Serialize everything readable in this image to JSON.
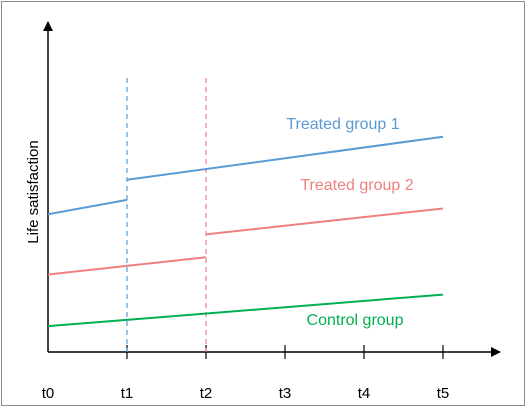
{
  "chart_data": {
    "type": "line",
    "title": "",
    "xlabel": "",
    "ylabel": "Life satisfaction",
    "categories": [
      "t0",
      "t1",
      "t2",
      "t3",
      "t4",
      "t5"
    ],
    "x_values": [
      0,
      1,
      2,
      3,
      4,
      5
    ],
    "ylim": [
      0,
      10
    ],
    "grid": false,
    "legend": "inline labels",
    "treatment_markers": [
      {
        "x": 1,
        "color": "#5b9bd5"
      },
      {
        "x": 2,
        "color": "#f08080"
      }
    ],
    "series": [
      {
        "name": "Treated group 1",
        "color": "#5b9bd5",
        "segments": [
          [
            [
              0,
              4.8
            ],
            [
              1,
              5.3
            ]
          ],
          [
            [
              1,
              6.0
            ],
            [
              5,
              7.5
            ]
          ]
        ]
      },
      {
        "name": "Treated group 2",
        "color": "#f08080",
        "segments": [
          [
            [
              0,
              2.7
            ],
            [
              2,
              3.3
            ]
          ],
          [
            [
              2,
              4.1
            ],
            [
              5,
              5.0
            ]
          ]
        ]
      },
      {
        "name": "Control group",
        "color": "#00b050",
        "segments": [
          [
            [
              0,
              0.9
            ],
            [
              5,
              2.0
            ]
          ]
        ]
      }
    ]
  }
}
